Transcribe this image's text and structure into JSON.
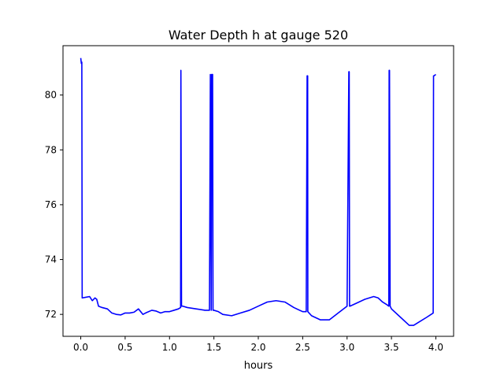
{
  "chart_data": {
    "type": "line",
    "title": "Water Depth h at gauge 520",
    "xlabel": "hours",
    "ylabel": "",
    "xlim": [
      -0.2,
      4.2
    ],
    "ylim": [
      71.2,
      81.8
    ],
    "xticks": [
      0.0,
      0.5,
      1.0,
      1.5,
      2.0,
      2.5,
      3.0,
      3.5,
      4.0
    ],
    "xtick_labels": [
      "0.0",
      "0.5",
      "1.0",
      "1.5",
      "2.0",
      "2.5",
      "3.0",
      "3.5",
      "4.0"
    ],
    "yticks": [
      72,
      74,
      76,
      78,
      80
    ],
    "ytick_labels": [
      "72",
      "74",
      "76",
      "78",
      "80"
    ],
    "grid": false,
    "series": [
      {
        "color": "#0000ff",
        "x": [
          0.0,
          0.005,
          0.007,
          0.012,
          0.016,
          0.05,
          0.1,
          0.13,
          0.16,
          0.18,
          0.2,
          0.24,
          0.3,
          0.35,
          0.4,
          0.45,
          0.5,
          0.55,
          0.6,
          0.65,
          0.7,
          0.73,
          0.8,
          0.85,
          0.9,
          0.95,
          1.0,
          1.05,
          1.1,
          1.125,
          1.128,
          1.135,
          1.15,
          1.2,
          1.3,
          1.4,
          1.45,
          1.46,
          1.47,
          1.475,
          1.485,
          1.49,
          1.5,
          1.55,
          1.6,
          1.7,
          1.8,
          1.9,
          2.0,
          2.1,
          2.2,
          2.3,
          2.4,
          2.5,
          2.54,
          2.55,
          2.556,
          2.558,
          2.6,
          2.7,
          2.8,
          2.9,
          3.0,
          3.02,
          3.024,
          3.028,
          3.032,
          3.1,
          3.2,
          3.3,
          3.35,
          3.4,
          3.45,
          3.47,
          3.474,
          3.478,
          3.485,
          3.5,
          3.6,
          3.7,
          3.75,
          3.8,
          3.9,
          3.97,
          3.974,
          3.98,
          4.0
        ],
        "y": [
          81.35,
          81.2,
          81.15,
          81.2,
          72.6,
          72.62,
          72.65,
          72.5,
          72.6,
          72.55,
          72.3,
          72.25,
          72.2,
          72.05,
          72.0,
          71.98,
          72.05,
          72.05,
          72.08,
          72.2,
          72.0,
          72.05,
          72.15,
          72.12,
          72.05,
          72.1,
          72.1,
          72.15,
          72.2,
          72.25,
          80.9,
          72.3,
          72.3,
          72.25,
          72.2,
          72.15,
          72.15,
          80.75,
          72.15,
          80.75,
          80.75,
          72.15,
          72.15,
          72.1,
          72.0,
          71.95,
          72.05,
          72.15,
          72.3,
          72.45,
          72.5,
          72.45,
          72.25,
          72.1,
          72.1,
          80.7,
          80.7,
          72.1,
          71.95,
          71.8,
          71.8,
          72.05,
          72.3,
          80.85,
          80.85,
          72.3,
          72.3,
          72.4,
          72.55,
          72.65,
          72.6,
          72.45,
          72.35,
          72.3,
          80.9,
          80.9,
          72.3,
          72.2,
          71.9,
          71.6,
          71.6,
          71.7,
          71.9,
          72.05,
          80.7,
          80.7,
          80.75
        ]
      }
    ]
  }
}
